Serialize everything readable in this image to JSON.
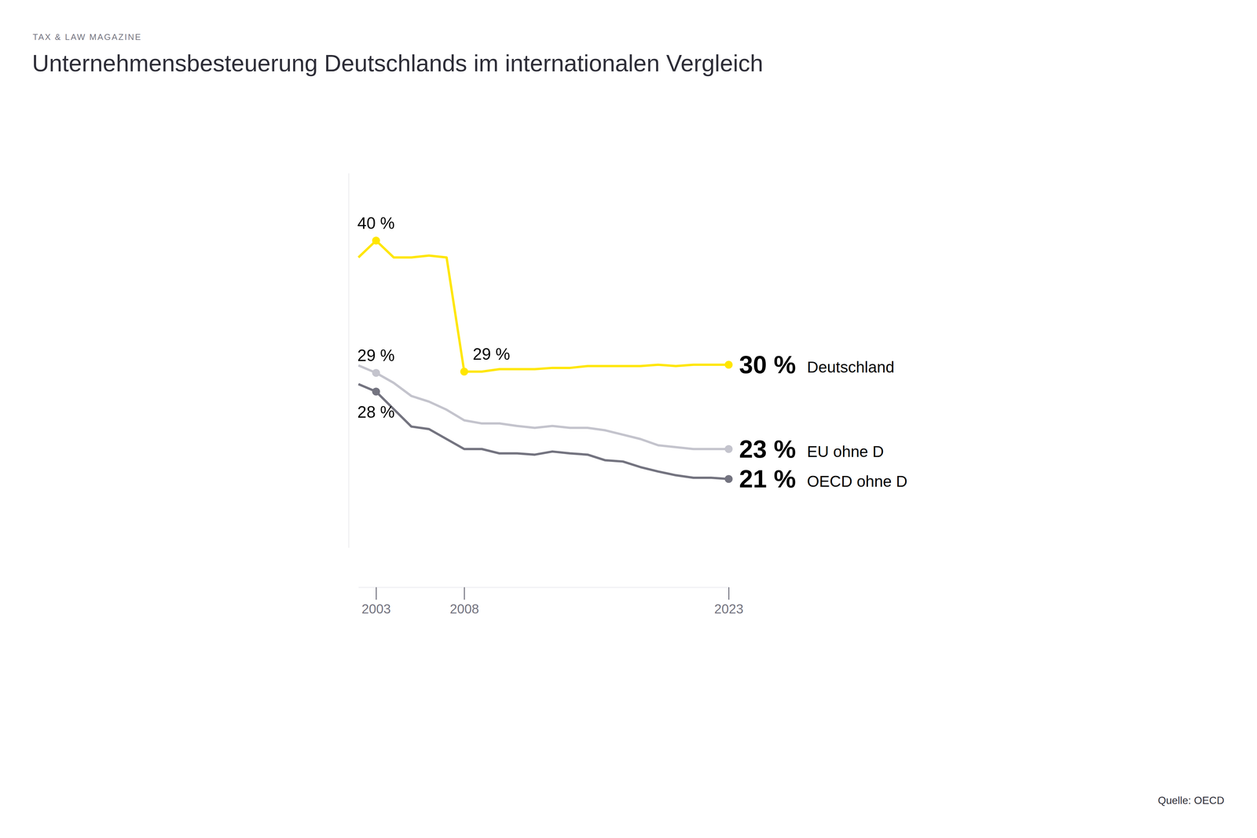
{
  "chart_data": {
    "type": "line",
    "kicker": "TAX & LAW MAGAZINE",
    "title": "Unternehmensbesteuerung Deutschlands im internationalen Vergleich",
    "source": "Quelle: OECD",
    "x": [
      2002,
      2003,
      2004,
      2005,
      2006,
      2007,
      2008,
      2009,
      2010,
      2011,
      2012,
      2013,
      2014,
      2015,
      2016,
      2017,
      2018,
      2019,
      2020,
      2021,
      2022,
      2023
    ],
    "xlim": [
      2002,
      2023
    ],
    "xticks": [
      2003,
      2008,
      2023
    ],
    "ylim": [
      15,
      45
    ],
    "yticks": [],
    "grid": false,
    "tick_labels": "x",
    "data_labels": true,
    "series": [
      {
        "name": "Deutschland",
        "color": "#ffe600",
        "marker": "circle",
        "values": [
          38.25,
          39.6,
          38.25,
          38.25,
          38.4,
          38.25,
          29.1,
          29.1,
          29.3,
          29.3,
          29.3,
          29.4,
          29.4,
          29.55,
          29.55,
          29.55,
          29.55,
          29.65,
          29.55,
          29.65,
          29.65,
          29.65
        ],
        "value_labels": [
          null,
          "40 %",
          null,
          null,
          null,
          null,
          "29 %",
          null,
          null,
          null,
          null,
          null,
          null,
          null,
          null,
          null,
          null,
          null,
          null,
          null,
          null,
          "30 %"
        ]
      },
      {
        "name": "EU ohne D",
        "color": "#c4c4cd",
        "marker": "circle",
        "values": [
          29.6,
          29.0,
          28.2,
          27.15,
          26.7,
          26.05,
          25.2,
          24.95,
          24.95,
          24.75,
          24.6,
          24.75,
          24.6,
          24.6,
          24.4,
          24.05,
          23.7,
          23.2,
          23.05,
          22.9,
          22.9,
          22.9
        ],
        "value_labels": [
          null,
          "29 %",
          null,
          null,
          null,
          null,
          null,
          null,
          null,
          null,
          null,
          null,
          null,
          null,
          null,
          null,
          null,
          null,
          null,
          null,
          null,
          "23 %"
        ]
      },
      {
        "name": "OECD ohne D",
        "color": "#747480",
        "marker": "circle",
        "values": [
          28.1,
          27.5,
          26.1,
          24.7,
          24.5,
          23.7,
          22.9,
          22.9,
          22.55,
          22.55,
          22.45,
          22.7,
          22.55,
          22.45,
          22.0,
          21.9,
          21.45,
          21.1,
          20.8,
          20.6,
          20.6,
          20.5
        ],
        "value_labels": [
          null,
          "28 %",
          null,
          null,
          null,
          null,
          null,
          null,
          null,
          null,
          null,
          null,
          null,
          null,
          null,
          null,
          null,
          null,
          null,
          null,
          null,
          "21 %"
        ]
      }
    ]
  }
}
